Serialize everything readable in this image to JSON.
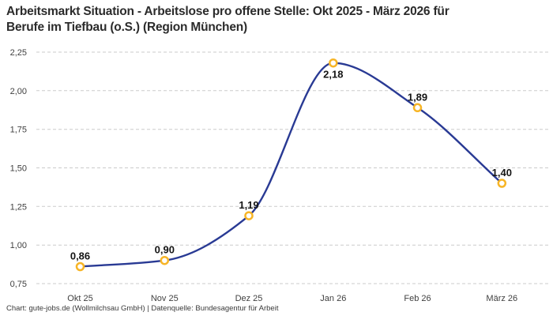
{
  "header": {
    "title_lines": [
      "Arbeitsmarkt Situation - Arbeitslose pro offene Stelle: Okt 2025 - März 2026 für",
      "Berufe im Tiefbau (o.S.) (Region München)"
    ]
  },
  "footer": {
    "attribution": "Chart: gute-jobs.de (Wollmilchsau GmbH) | Datenquelle: Bundesagentur für Arbeit"
  },
  "chart_data": {
    "type": "line",
    "title": "Arbeitsmarkt Situation - Arbeitslose pro offene Stelle: Okt 2025 - März 2026 für Berufe im Tiefbau (o.S.) (Region München)",
    "categories": [
      "Okt 25",
      "Nov 25",
      "Dez 25",
      "Jan 26",
      "Feb 26",
      "März 26"
    ],
    "values": [
      0.86,
      0.9,
      1.19,
      2.18,
      1.89,
      1.4
    ],
    "point_labels": [
      "0,86",
      "0,90",
      "1,19",
      "2,18",
      "1,89",
      "1,40"
    ],
    "label_placement": [
      "above",
      "above",
      "above",
      "below",
      "above",
      "above"
    ],
    "xlabel": "",
    "ylabel": "",
    "ylim": [
      0.75,
      2.25
    ],
    "yticks": [
      0.75,
      1.0,
      1.25,
      1.5,
      1.75,
      2.0,
      2.25
    ],
    "ytick_labels": [
      "0,75",
      "1,00",
      "1,25",
      "1,50",
      "1,75",
      "2,00",
      "2,25"
    ],
    "grid": "horizontal-dashed",
    "legend": "none",
    "colors": {
      "line": "#293a94",
      "marker": "#f7b527",
      "marker_fill": "#ffffff",
      "grid": "#cbcbcb",
      "tick_text": "#3f3f3f",
      "point_label": "#141414",
      "title": "#2b2b2b"
    }
  }
}
